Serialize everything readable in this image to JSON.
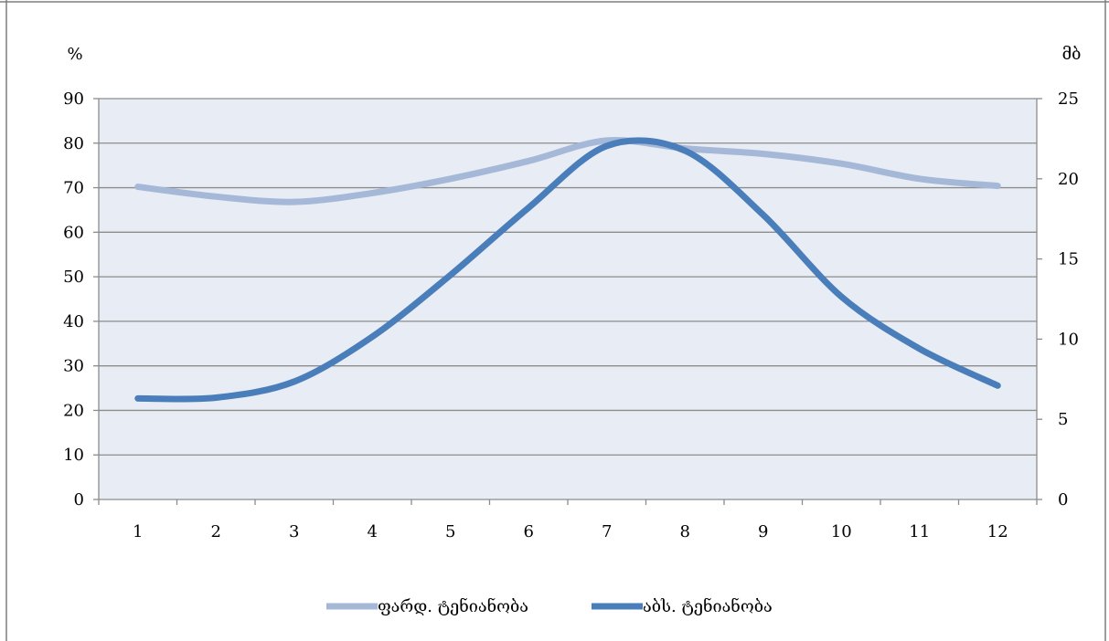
{
  "chart_data": {
    "type": "line",
    "x": [
      1,
      2,
      3,
      4,
      5,
      6,
      7,
      8,
      9,
      10,
      11,
      12
    ],
    "y_left_label": "%",
    "y_right_label": "მბ",
    "y_left_ticks": [
      "0",
      "10",
      "20",
      "30",
      "40",
      "50",
      "60",
      "70",
      "80",
      "90"
    ],
    "y_right_ticks": [
      "0",
      "5",
      "10",
      "15",
      "20",
      "25"
    ],
    "x_ticks": [
      "1",
      "2",
      "3",
      "4",
      "5",
      "6",
      "7",
      "8",
      "9",
      "10",
      "11",
      "12"
    ],
    "ylim_left": [
      0,
      90
    ],
    "ylim_right": [
      0,
      25
    ],
    "grid": true,
    "legend_position": "bottom",
    "series": [
      {
        "name": "ფარდ. ტენიანობა",
        "axis": "left",
        "color": "#a5b8d8",
        "values": [
          70.2,
          68.0,
          66.8,
          68.8,
          72.0,
          76.0,
          80.6,
          78.8,
          77.6,
          75.4,
          72.0,
          70.4
        ]
      },
      {
        "name": "აბს. ტენიანობა",
        "axis": "right",
        "color": "#4a7ebb",
        "values": [
          6.3,
          6.35,
          7.35,
          10.15,
          14.0,
          18.2,
          22.05,
          21.75,
          17.75,
          12.65,
          9.4,
          7.1
        ]
      }
    ],
    "colors": {
      "plot_background": "#e8ecf4",
      "gridline": "#8c8c8c",
      "axis": "#8c8c8c",
      "frame": "#7f7f7f"
    }
  }
}
